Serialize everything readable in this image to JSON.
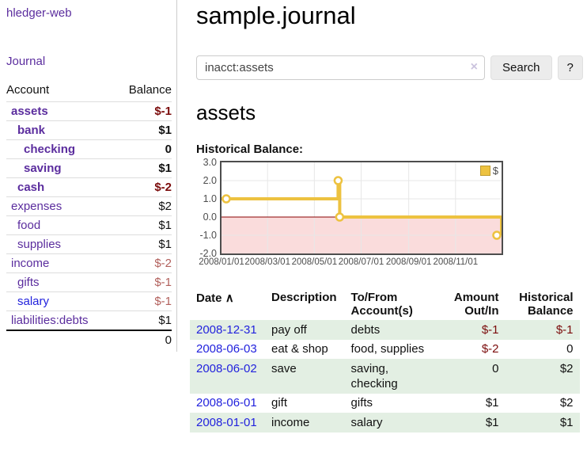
{
  "brand": "hledger-web",
  "header": {
    "title": "sample.journal"
  },
  "sidebar": {
    "journal_link": "Journal",
    "accounts_header": {
      "account": "Account",
      "balance": "Balance"
    },
    "accounts": [
      {
        "name": "assets",
        "balance": "$-1",
        "depth": 1,
        "selected": true,
        "negative": "strong"
      },
      {
        "name": "bank",
        "balance": "$1",
        "depth": 2,
        "selected": true,
        "negative": "none"
      },
      {
        "name": "checking",
        "balance": "0",
        "depth": 3,
        "selected": true,
        "negative": "none"
      },
      {
        "name": "saving",
        "balance": "$1",
        "depth": 3,
        "selected": true,
        "negative": "none"
      },
      {
        "name": "cash",
        "balance": "$-2",
        "depth": 2,
        "selected": true,
        "negative": "strong"
      },
      {
        "name": "expenses",
        "balance": "$2",
        "depth": 1,
        "selected": false,
        "negative": "none"
      },
      {
        "name": "food",
        "balance": "$1",
        "depth": 2,
        "selected": false,
        "negative": "none"
      },
      {
        "name": "supplies",
        "balance": "$1",
        "depth": 2,
        "selected": false,
        "negative": "none"
      },
      {
        "name": "income",
        "balance": "$-2",
        "depth": 1,
        "selected": false,
        "negative": "soft"
      },
      {
        "name": "gifts",
        "balance": "$-1",
        "depth": 2,
        "selected": false,
        "negative": "soft"
      },
      {
        "name": "salary",
        "balance": "$-1",
        "depth": 2,
        "selected": false,
        "negative": "soft"
      },
      {
        "name": "liabilities:debts",
        "balance": "$1",
        "depth": 1,
        "selected": false,
        "negative": "none"
      }
    ],
    "total_balance": "0"
  },
  "search": {
    "value": "inacct:assets",
    "clear_icon": "×",
    "search_button": "Search",
    "help_button": "?"
  },
  "account_page": {
    "heading": "assets",
    "chart_label": "Historical Balance:"
  },
  "chart_data": {
    "type": "line",
    "step": true,
    "title": "Historical Balance:",
    "x_start": "2008-01-01",
    "x_end": "2008-12-31",
    "ylim": [
      -2,
      3
    ],
    "y_ticks": [
      3,
      2,
      1,
      0,
      -1,
      -2
    ],
    "x_ticks": [
      {
        "date": "2008-01-01",
        "label": "2008/01/01"
      },
      {
        "date": "2008-03-01",
        "label": "2008/03/01"
      },
      {
        "date": "2008-05-01",
        "label": "2008/05/01"
      },
      {
        "date": "2008-07-01",
        "label": "2008/07/01"
      },
      {
        "date": "2008-09-01",
        "label": "2008/09/01"
      },
      {
        "date": "2008-11-01",
        "label": "2008/11/01"
      }
    ],
    "series": [
      {
        "name": "$",
        "color": "#edc240",
        "points": [
          {
            "x": "2008-01-01",
            "y": 1
          },
          {
            "x": "2008-06-01",
            "y": 2
          },
          {
            "x": "2008-06-03",
            "y": 0
          },
          {
            "x": "2008-12-31",
            "y": -1
          }
        ]
      }
    ],
    "grid_color": "#e7e7e7",
    "zero_line_color": "#8b0000",
    "negative_region_color": "#fadcdc",
    "border_color": "#4d4d4d",
    "legend": {
      "label": "$",
      "position": "top-right",
      "swatch_color": "#edc240"
    }
  },
  "register_table": {
    "sort_icon": "∧",
    "headers": {
      "date": "Date",
      "description": "Description",
      "tofrom": "To/From Account(s)",
      "amount": "Amount Out/In",
      "balance": "Historical Balance"
    },
    "rows": [
      {
        "date": "2008-12-31",
        "description": "pay off",
        "accounts": "debts",
        "amount": "$-1",
        "balance": "$-1"
      },
      {
        "date": "2008-06-03",
        "description": "eat & shop",
        "accounts": "food, supplies",
        "amount": "$-2",
        "balance": "0"
      },
      {
        "date": "2008-06-02",
        "description": "save",
        "accounts": "saving, checking",
        "amount": "0",
        "balance": "$2"
      },
      {
        "date": "2008-06-01",
        "description": "gift",
        "accounts": "gifts",
        "amount": "$1",
        "balance": "$2"
      },
      {
        "date": "2008-01-01",
        "description": "income",
        "accounts": "salary",
        "amount": "$1",
        "balance": "$1"
      }
    ]
  },
  "colors": {
    "link_purple": "#5b2d9e",
    "link_blue": "#2222dd",
    "negative_strong": "#7b0c0c",
    "negative_soft": "#b2605c",
    "row_stripe_green": "#e3efe3",
    "chart_line_gold": "#edc240",
    "chart_negative_region": "#fadcdc",
    "chart_zero_line": "#8b0000"
  }
}
